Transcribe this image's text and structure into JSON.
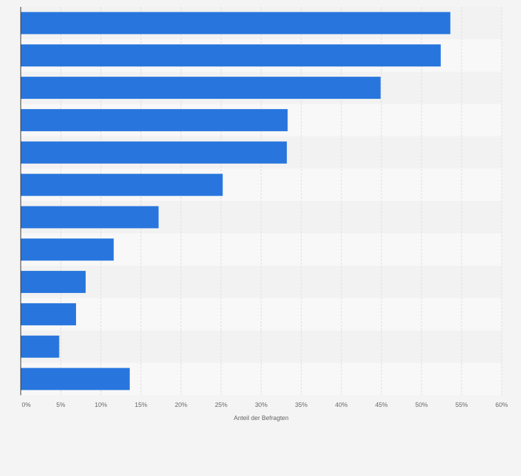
{
  "chart_data": {
    "type": "bar",
    "orientation": "horizontal",
    "title": "",
    "xlabel": "Anteil der Befragten",
    "ylabel": "",
    "categories": [
      "",
      "",
      "",
      "",
      "",
      "",
      "",
      "",
      "",
      "",
      "",
      ""
    ],
    "values": [
      53.6,
      52.4,
      44.9,
      33.3,
      33.2,
      25.2,
      17.2,
      11.6,
      8.1,
      6.9,
      4.8,
      13.6
    ],
    "unit": "%",
    "xlim": [
      0,
      60
    ],
    "x_ticks": [
      0,
      5,
      10,
      15,
      20,
      25,
      30,
      35,
      40,
      45,
      50,
      55,
      60
    ],
    "x_tick_labels": [
      "0%",
      "5%",
      "10%",
      "15%",
      "20%",
      "25%",
      "30%",
      "35%",
      "40%",
      "45%",
      "50%",
      "55%",
      "60%"
    ],
    "grid": true,
    "legend": "none",
    "colors": {
      "bar": "#2876dd",
      "background": "#f4f4f4",
      "band_light": "#f8f8f8",
      "band_dark": "#f2f2f2",
      "grid": "#dddddd",
      "axis": "#333333",
      "text": "#666666"
    }
  }
}
